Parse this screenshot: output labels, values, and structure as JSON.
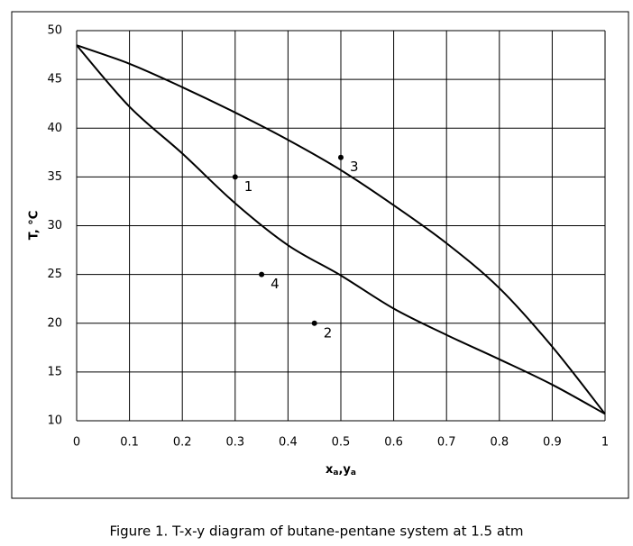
{
  "chart_data": {
    "type": "line",
    "xlabel": [
      "x",
      "a",
      ",y",
      "a"
    ],
    "ylabel": "T, °C",
    "caption": "Figure 1. T-x-y diagram of butane-pentane system at 1.5 atm",
    "x": [
      0,
      0.1,
      0.2,
      0.3,
      0.4,
      0.5,
      0.6,
      0.7,
      0.8,
      0.9,
      1
    ],
    "series": [
      {
        "color": "#000000",
        "values": [
          48.5,
          42.2,
          37.4,
          32.3,
          28.0,
          24.9,
          21.5,
          18.8,
          16.3,
          13.7,
          10.7
        ]
      },
      {
        "color": "#000000",
        "values": [
          48.5,
          46.6,
          44.2,
          41.6,
          38.8,
          35.7,
          32.1,
          28.2,
          23.6,
          17.6,
          10.7
        ]
      }
    ],
    "points": {
      "x": [
        0.3,
        0.45,
        0.5,
        0.35
      ],
      "values": [
        35,
        20,
        37,
        25
      ],
      "labels": [
        "1",
        "2",
        "3",
        "4"
      ],
      "color": "#000000"
    },
    "xlim": [
      0,
      1
    ],
    "ylim": [
      10,
      50
    ],
    "xticks": [
      0,
      0.1,
      0.2,
      0.3,
      0.4,
      0.5,
      0.6,
      0.7,
      0.8,
      0.9,
      1
    ],
    "yticks": [
      10,
      15,
      20,
      25,
      30,
      35,
      40,
      45,
      50
    ],
    "grid": true
  }
}
